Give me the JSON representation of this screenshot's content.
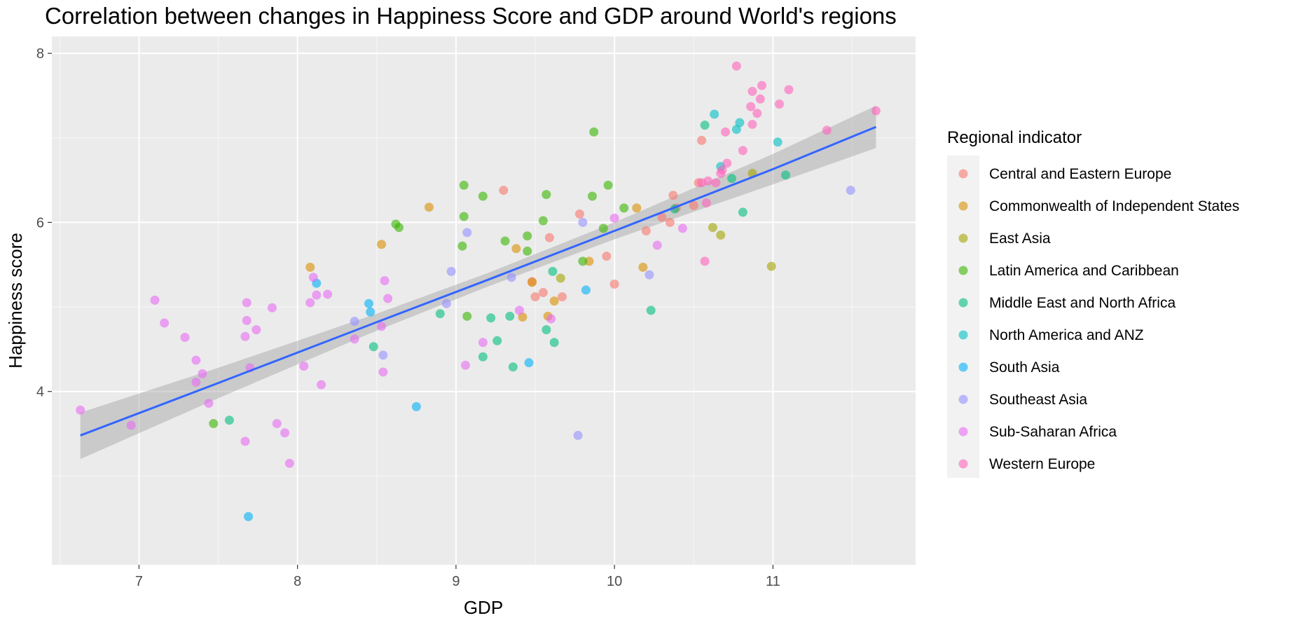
{
  "chart_data": {
    "type": "scatter",
    "title": "Correlation between changes in Happiness Score and GDP around World's regions",
    "xlabel": "GDP",
    "ylabel": "Happiness score",
    "xlim": [
      6.45,
      11.9
    ],
    "ylim": [
      1.95,
      8.2
    ],
    "xticks": [
      7,
      8,
      9,
      10,
      11
    ],
    "yticks": [
      4,
      6,
      8
    ],
    "grid": true,
    "legend": {
      "title": "Regional indicator",
      "placement": "right"
    },
    "trend_line": {
      "method": "linear",
      "confidence_band": true,
      "color": "#3366ff",
      "band_color": "#999999",
      "points": [
        {
          "x": 6.63,
          "y": 3.48,
          "lower": 3.2,
          "upper": 3.75
        },
        {
          "x": 7.5,
          "y": 4.1,
          "lower": 3.92,
          "upper": 4.28
        },
        {
          "x": 8.5,
          "y": 4.82,
          "lower": 4.72,
          "upper": 4.92
        },
        {
          "x": 9.2,
          "y": 5.32,
          "lower": 5.24,
          "upper": 5.4
        },
        {
          "x": 10.0,
          "y": 5.9,
          "lower": 5.8,
          "upper": 6.0
        },
        {
          "x": 11.0,
          "y": 6.63,
          "lower": 6.45,
          "upper": 6.81
        },
        {
          "x": 11.65,
          "y": 7.13,
          "lower": 6.88,
          "upper": 7.38
        }
      ]
    },
    "series": [
      {
        "name": "Central and Eastern Europe",
        "color": "#f8766d",
        "points": [
          {
            "x": 9.3,
            "y": 6.38
          },
          {
            "x": 9.48,
            "y": 5.3
          },
          {
            "x": 9.5,
            "y": 5.12
          },
          {
            "x": 9.55,
            "y": 5.17
          },
          {
            "x": 9.59,
            "y": 5.82
          },
          {
            "x": 9.67,
            "y": 5.12
          },
          {
            "x": 9.78,
            "y": 6.1
          },
          {
            "x": 9.95,
            "y": 5.6
          },
          {
            "x": 10.0,
            "y": 5.27
          },
          {
            "x": 10.2,
            "y": 5.9
          },
          {
            "x": 10.3,
            "y": 6.06
          },
          {
            "x": 10.35,
            "y": 6.0
          },
          {
            "x": 10.37,
            "y": 6.32
          },
          {
            "x": 10.39,
            "y": 6.17
          },
          {
            "x": 10.5,
            "y": 6.2
          },
          {
            "x": 10.53,
            "y": 6.47
          },
          {
            "x": 10.55,
            "y": 6.97
          }
        ]
      },
      {
        "name": "Commonwealth of Independent States",
        "color": "#d89000",
        "points": [
          {
            "x": 8.08,
            "y": 5.47
          },
          {
            "x": 8.53,
            "y": 5.74
          },
          {
            "x": 8.83,
            "y": 6.18
          },
          {
            "x": 9.38,
            "y": 5.69
          },
          {
            "x": 9.42,
            "y": 4.88
          },
          {
            "x": 9.48,
            "y": 5.29
          },
          {
            "x": 9.58,
            "y": 4.89
          },
          {
            "x": 9.62,
            "y": 5.07
          },
          {
            "x": 9.84,
            "y": 5.54
          },
          {
            "x": 10.14,
            "y": 6.17
          },
          {
            "x": 10.18,
            "y": 5.47
          }
        ]
      },
      {
        "name": "East Asia",
        "color": "#a3a500",
        "points": [
          {
            "x": 9.66,
            "y": 5.34
          },
          {
            "x": 10.62,
            "y": 5.94
          },
          {
            "x": 10.67,
            "y": 5.85
          },
          {
            "x": 10.87,
            "y": 6.58
          },
          {
            "x": 10.99,
            "y": 5.48
          }
        ]
      },
      {
        "name": "Latin America and Caribbean",
        "color": "#39b600",
        "points": [
          {
            "x": 7.47,
            "y": 3.62
          },
          {
            "x": 8.62,
            "y": 5.98
          },
          {
            "x": 8.64,
            "y": 5.94
          },
          {
            "x": 9.05,
            "y": 6.44
          },
          {
            "x": 9.04,
            "y": 5.72
          },
          {
            "x": 9.05,
            "y": 6.07
          },
          {
            "x": 9.07,
            "y": 4.89
          },
          {
            "x": 9.17,
            "y": 6.31
          },
          {
            "x": 9.31,
            "y": 5.78
          },
          {
            "x": 9.45,
            "y": 5.84
          },
          {
            "x": 9.45,
            "y": 5.66
          },
          {
            "x": 9.55,
            "y": 6.02
          },
          {
            "x": 9.57,
            "y": 6.33
          },
          {
            "x": 9.8,
            "y": 5.54
          },
          {
            "x": 9.86,
            "y": 6.31
          },
          {
            "x": 9.87,
            "y": 7.07
          },
          {
            "x": 9.96,
            "y": 6.44
          },
          {
            "x": 10.06,
            "y": 6.17
          },
          {
            "x": 9.93,
            "y": 5.93
          }
        ]
      },
      {
        "name": "Middle East and North Africa",
        "color": "#00bf7d",
        "points": [
          {
            "x": 7.57,
            "y": 3.66
          },
          {
            "x": 8.48,
            "y": 4.53
          },
          {
            "x": 8.9,
            "y": 4.92
          },
          {
            "x": 9.17,
            "y": 4.41
          },
          {
            "x": 9.22,
            "y": 4.87
          },
          {
            "x": 9.26,
            "y": 4.6
          },
          {
            "x": 9.34,
            "y": 4.89
          },
          {
            "x": 9.36,
            "y": 4.29
          },
          {
            "x": 9.57,
            "y": 4.73
          },
          {
            "x": 9.61,
            "y": 5.42
          },
          {
            "x": 9.62,
            "y": 4.58
          },
          {
            "x": 10.23,
            "y": 4.96
          },
          {
            "x": 10.38,
            "y": 6.16
          },
          {
            "x": 10.57,
            "y": 7.15
          },
          {
            "x": 10.74,
            "y": 6.52
          },
          {
            "x": 10.81,
            "y": 6.12
          },
          {
            "x": 11.08,
            "y": 6.56
          }
        ]
      },
      {
        "name": "North America and ANZ",
        "color": "#00bfc4",
        "points": [
          {
            "x": 10.63,
            "y": 7.28
          },
          {
            "x": 10.67,
            "y": 6.66
          },
          {
            "x": 10.77,
            "y": 7.1
          },
          {
            "x": 10.79,
            "y": 7.18
          },
          {
            "x": 11.03,
            "y": 6.95
          }
        ]
      },
      {
        "name": "South Asia",
        "color": "#00b0f6",
        "points": [
          {
            "x": 7.69,
            "y": 2.52
          },
          {
            "x": 8.12,
            "y": 5.28
          },
          {
            "x": 8.45,
            "y": 5.04
          },
          {
            "x": 8.46,
            "y": 4.94
          },
          {
            "x": 8.75,
            "y": 3.82
          },
          {
            "x": 9.46,
            "y": 4.34
          },
          {
            "x": 9.82,
            "y": 5.2
          }
        ]
      },
      {
        "name": "Southeast Asia",
        "color": "#9590ff",
        "points": [
          {
            "x": 8.36,
            "y": 4.83
          },
          {
            "x": 8.54,
            "y": 4.43
          },
          {
            "x": 8.94,
            "y": 5.04
          },
          {
            "x": 8.97,
            "y": 5.42
          },
          {
            "x": 9.07,
            "y": 5.88
          },
          {
            "x": 9.35,
            "y": 5.35
          },
          {
            "x": 9.8,
            "y": 6.0
          },
          {
            "x": 10.22,
            "y": 5.38
          },
          {
            "x": 11.49,
            "y": 6.38
          },
          {
            "x": 9.77,
            "y": 3.48
          }
        ]
      },
      {
        "name": "Sub-Saharan Africa",
        "color": "#e76bf3",
        "points": [
          {
            "x": 6.63,
            "y": 3.78
          },
          {
            "x": 6.95,
            "y": 3.6
          },
          {
            "x": 7.1,
            "y": 5.08
          },
          {
            "x": 7.16,
            "y": 4.81
          },
          {
            "x": 7.29,
            "y": 4.64
          },
          {
            "x": 7.36,
            "y": 4.37
          },
          {
            "x": 7.36,
            "y": 4.11
          },
          {
            "x": 7.4,
            "y": 4.21
          },
          {
            "x": 7.44,
            "y": 3.86
          },
          {
            "x": 7.67,
            "y": 3.41
          },
          {
            "x": 7.67,
            "y": 4.65
          },
          {
            "x": 7.68,
            "y": 4.84
          },
          {
            "x": 7.68,
            "y": 5.05
          },
          {
            "x": 7.7,
            "y": 4.28
          },
          {
            "x": 7.74,
            "y": 4.73
          },
          {
            "x": 7.84,
            "y": 4.99
          },
          {
            "x": 7.87,
            "y": 3.62
          },
          {
            "x": 7.92,
            "y": 3.51
          },
          {
            "x": 7.95,
            "y": 3.15
          },
          {
            "x": 8.04,
            "y": 4.3
          },
          {
            "x": 8.08,
            "y": 5.05
          },
          {
            "x": 8.1,
            "y": 5.35
          },
          {
            "x": 8.12,
            "y": 5.14
          },
          {
            "x": 8.15,
            "y": 4.08
          },
          {
            "x": 8.19,
            "y": 5.15
          },
          {
            "x": 8.36,
            "y": 4.62
          },
          {
            "x": 8.53,
            "y": 4.77
          },
          {
            "x": 8.54,
            "y": 4.23
          },
          {
            "x": 8.55,
            "y": 5.31
          },
          {
            "x": 8.57,
            "y": 5.1
          },
          {
            "x": 9.06,
            "y": 4.31
          },
          {
            "x": 9.17,
            "y": 4.58
          },
          {
            "x": 9.4,
            "y": 4.96
          },
          {
            "x": 9.6,
            "y": 4.86
          },
          {
            "x": 10.0,
            "y": 6.05
          },
          {
            "x": 10.27,
            "y": 5.73
          },
          {
            "x": 10.43,
            "y": 5.93
          }
        ]
      },
      {
        "name": "Western Europe",
        "color": "#ff62bc",
        "points": [
          {
            "x": 10.55,
            "y": 6.47
          },
          {
            "x": 10.57,
            "y": 5.54
          },
          {
            "x": 10.58,
            "y": 6.23
          },
          {
            "x": 10.59,
            "y": 6.49
          },
          {
            "x": 10.64,
            "y": 6.47
          },
          {
            "x": 10.67,
            "y": 6.58
          },
          {
            "x": 10.68,
            "y": 6.62
          },
          {
            "x": 10.71,
            "y": 6.7
          },
          {
            "x": 10.7,
            "y": 7.07
          },
          {
            "x": 10.77,
            "y": 7.85
          },
          {
            "x": 10.81,
            "y": 6.85
          },
          {
            "x": 10.86,
            "y": 7.37
          },
          {
            "x": 10.87,
            "y": 7.55
          },
          {
            "x": 10.87,
            "y": 7.16
          },
          {
            "x": 10.9,
            "y": 7.29
          },
          {
            "x": 10.92,
            "y": 7.46
          },
          {
            "x": 10.93,
            "y": 7.62
          },
          {
            "x": 11.04,
            "y": 7.4
          },
          {
            "x": 11.1,
            "y": 7.57
          },
          {
            "x": 11.34,
            "y": 7.09
          },
          {
            "x": 11.65,
            "y": 7.32
          }
        ]
      }
    ]
  }
}
